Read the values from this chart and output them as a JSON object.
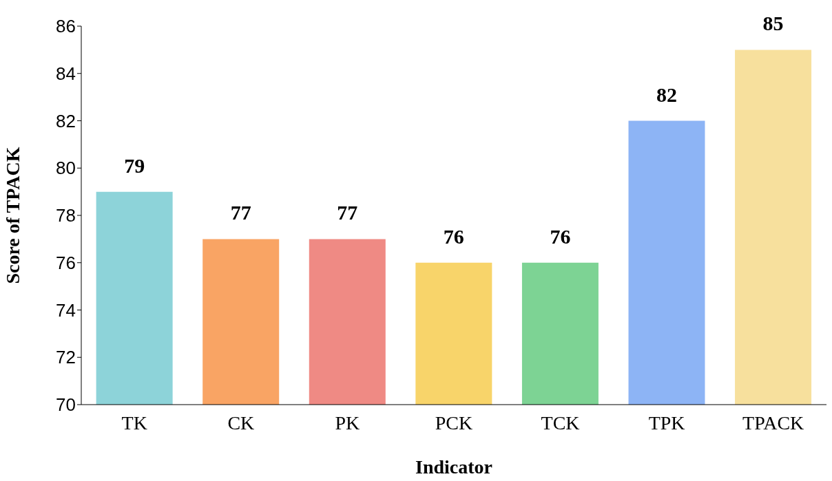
{
  "chart_data": {
    "type": "bar",
    "xlabel": "Indicator",
    "ylabel": "Score of TPACK",
    "categories": [
      "TK",
      "CK",
      "PK",
      "PCK",
      "TCK",
      "TPK",
      "TPACK"
    ],
    "values": [
      79,
      77,
      77,
      76,
      76,
      82,
      85
    ],
    "colors": [
      "#8dd3d9",
      "#f9a464",
      "#ef8a84",
      "#f8d46a",
      "#7dd394",
      "#8db4f5",
      "#f7e09d"
    ],
    "ylim": [
      70,
      86
    ],
    "yticks": [
      70,
      72,
      74,
      76,
      78,
      80,
      82,
      84,
      86
    ],
    "data_labels": true,
    "grid": false,
    "legend": false
  }
}
